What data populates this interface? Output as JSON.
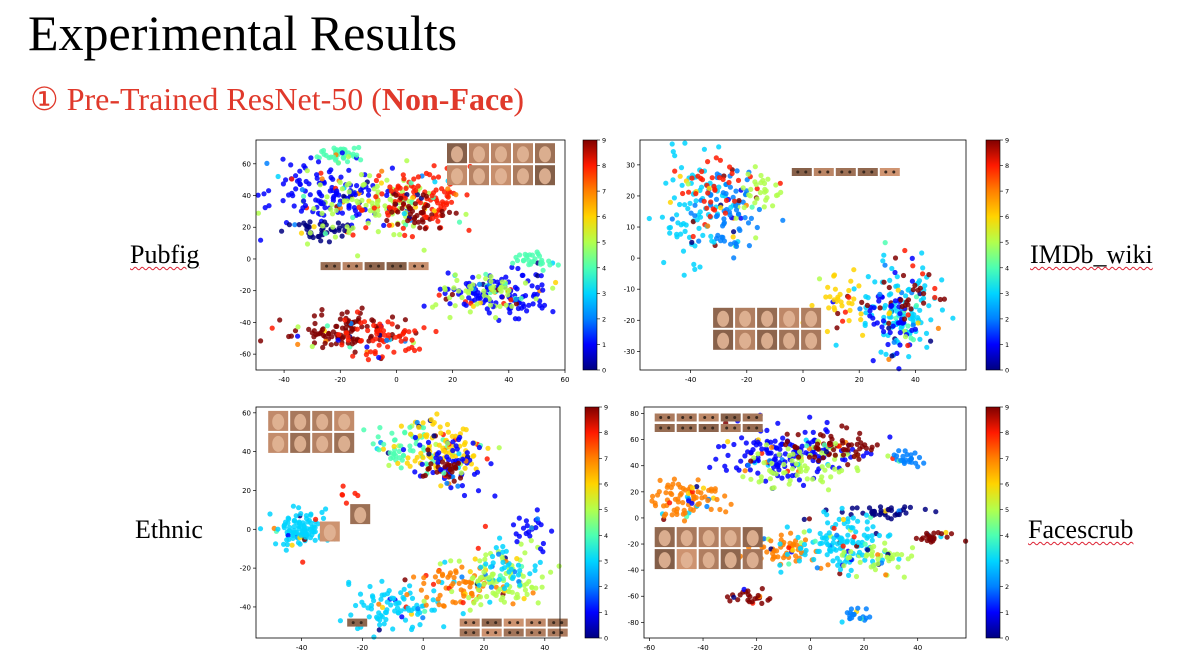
{
  "slide": {
    "title": "Experimental Results",
    "subtitle_prefix": "① Pre-Trained ResNet-50 (",
    "subtitle_bold": "Non-Face",
    "subtitle_suffix": ")"
  },
  "labels": {
    "pubfig": "Pubfig",
    "imdb": "IMDb_wiki",
    "ethnic": "Ethnic",
    "facescrub": "Facescrub"
  },
  "colors": {
    "title": "#000000",
    "subtitle": "#e0392b",
    "colormap": [
      "#000080",
      "#0000ff",
      "#0080ff",
      "#00d4ff",
      "#4dffb2",
      "#b2ff4d",
      "#ffd400",
      "#ff8000",
      "#ff1a00",
      "#800000"
    ]
  },
  "chart_data": [
    {
      "type": "scatter",
      "name": "Pubfig",
      "xlim": [
        -50,
        60
      ],
      "ylim": [
        -70,
        75
      ],
      "xticks": [
        -40,
        -20,
        0,
        20,
        40,
        60
      ],
      "yticks": [
        -60,
        -40,
        -20,
        0,
        20,
        40,
        60
      ],
      "colorbar": {
        "min": 0,
        "max": 9,
        "ticks": [
          0,
          1,
          2,
          3,
          4,
          5,
          6,
          7,
          8,
          9
        ]
      },
      "clusters": [
        {
          "x": -20,
          "y": 66,
          "sx": 4,
          "sy": 3,
          "n": 40,
          "class": 4
        },
        {
          "x": -25,
          "y": 40,
          "sx": 10,
          "sy": 9,
          "n": 140,
          "class": 1
        },
        {
          "x": -28,
          "y": 18,
          "sx": 6,
          "sy": 4,
          "n": 50,
          "class": 0
        },
        {
          "x": -8,
          "y": 32,
          "sx": 10,
          "sy": 10,
          "n": 100,
          "class": 5
        },
        {
          "x": 8,
          "y": 38,
          "sx": 9,
          "sy": 10,
          "n": 120,
          "class": 8
        },
        {
          "x": 6,
          "y": 30,
          "sx": 6,
          "sy": 6,
          "n": 40,
          "class": 9
        },
        {
          "x": -18,
          "y": -45,
          "sx": 9,
          "sy": 6,
          "n": 110,
          "class": 9
        },
        {
          "x": -5,
          "y": -50,
          "sx": 8,
          "sy": 6,
          "n": 70,
          "class": 8
        },
        {
          "x": 35,
          "y": -22,
          "sx": 10,
          "sy": 7,
          "n": 130,
          "class": 1
        },
        {
          "x": 30,
          "y": -20,
          "sx": 8,
          "sy": 6,
          "n": 60,
          "class": 5
        },
        {
          "x": 48,
          "y": 0,
          "sx": 4,
          "sy": 3,
          "n": 30,
          "class": 4
        }
      ],
      "image_rows": [
        {
          "x0": 18,
          "y0": 73,
          "cols": 5,
          "rows": 2,
          "kind": "face"
        },
        {
          "x0": -27,
          "y0": -2,
          "cols": 5,
          "rows": 1,
          "kind": "eyes"
        }
      ]
    },
    {
      "type": "scatter",
      "name": "IMDb_wiki",
      "xlim": [
        -58,
        58
      ],
      "ylim": [
        -36,
        38
      ],
      "xticks": [
        -40,
        -20,
        0,
        20,
        40
      ],
      "yticks": [
        -30,
        -20,
        -10,
        0,
        10,
        20,
        30
      ],
      "colorbar": {
        "min": 0,
        "max": 9,
        "ticks": [
          0,
          1,
          2,
          3,
          4,
          5,
          6,
          7,
          8,
          9
        ]
      },
      "clusters": [
        {
          "x": -38,
          "y": 15,
          "sx": 7,
          "sy": 8,
          "n": 90,
          "class": 3
        },
        {
          "x": -25,
          "y": 15,
          "sx": 6,
          "sy": 7,
          "n": 80,
          "class": 2
        },
        {
          "x": -32,
          "y": 22,
          "sx": 6,
          "sy": 5,
          "n": 40,
          "class": 8
        },
        {
          "x": -14,
          "y": 21,
          "sx": 4,
          "sy": 4,
          "n": 30,
          "class": 5
        },
        {
          "x": 12,
          "y": -15,
          "sx": 4,
          "sy": 5,
          "n": 40,
          "class": 6
        },
        {
          "x": 35,
          "y": -16,
          "sx": 7,
          "sy": 8,
          "n": 120,
          "class": 3
        },
        {
          "x": 33,
          "y": -20,
          "sx": 6,
          "sy": 7,
          "n": 60,
          "class": 1
        },
        {
          "x": 36,
          "y": -12,
          "sx": 6,
          "sy": 6,
          "n": 25,
          "class": 9
        }
      ],
      "image_rows": [
        {
          "x0": -4,
          "y0": 29,
          "cols": 5,
          "rows": 1,
          "kind": "eyes"
        },
        {
          "x0": -32,
          "y0": -16,
          "cols": 5,
          "rows": 2,
          "kind": "face"
        }
      ]
    },
    {
      "type": "scatter",
      "name": "Ethnic",
      "xlim": [
        -55,
        45
      ],
      "ylim": [
        -56,
        63
      ],
      "xticks": [
        -40,
        -20,
        0,
        20,
        40
      ],
      "yticks": [
        -40,
        -20,
        0,
        20,
        40,
        60
      ],
      "colorbar": {
        "min": 0,
        "max": 9,
        "ticks": [
          0,
          1,
          2,
          3,
          4,
          5,
          6,
          7,
          8,
          9
        ]
      },
      "clusters": [
        {
          "x": -40,
          "y": 0,
          "sx": 5,
          "sy": 5,
          "n": 110,
          "class": 3
        },
        {
          "x": -5,
          "y": 42,
          "sx": 6,
          "sy": 6,
          "n": 60,
          "class": 4
        },
        {
          "x": 5,
          "y": 42,
          "sx": 7,
          "sy": 7,
          "n": 90,
          "class": 6
        },
        {
          "x": 10,
          "y": 35,
          "sx": 6,
          "sy": 7,
          "n": 60,
          "class": 1
        },
        {
          "x": 8,
          "y": 30,
          "sx": 4,
          "sy": 3,
          "n": 30,
          "class": 9
        },
        {
          "x": -25,
          "y": 18,
          "sx": 2,
          "sy": 2,
          "n": 6,
          "class": 8
        },
        {
          "x": -10,
          "y": -40,
          "sx": 7,
          "sy": 6,
          "n": 90,
          "class": 3
        },
        {
          "x": 10,
          "y": -30,
          "sx": 8,
          "sy": 6,
          "n": 70,
          "class": 7
        },
        {
          "x": 25,
          "y": -25,
          "sx": 8,
          "sy": 7,
          "n": 100,
          "class": 5
        },
        {
          "x": 28,
          "y": -20,
          "sx": 6,
          "sy": 6,
          "n": 40,
          "class": 3
        },
        {
          "x": 35,
          "y": 0,
          "sx": 3,
          "sy": 5,
          "n": 25,
          "class": 1
        }
      ],
      "image_rows": [
        {
          "x0": -51,
          "y0": 61,
          "cols": 4,
          "rows": 2,
          "kind": "face"
        },
        {
          "x0": -24,
          "y0": 13,
          "cols": 1,
          "rows": 1,
          "kind": "face"
        },
        {
          "x0": -34,
          "y0": 4,
          "cols": 1,
          "rows": 1,
          "kind": "face"
        },
        {
          "x0": 12,
          "y0": -46,
          "cols": 5,
          "rows": 2,
          "kind": "eyes"
        },
        {
          "x0": -25,
          "y0": -46,
          "cols": 1,
          "rows": 1,
          "kind": "eyes"
        }
      ]
    },
    {
      "type": "scatter",
      "name": "Facescrub",
      "xlim": [
        -62,
        58
      ],
      "ylim": [
        -92,
        85
      ],
      "xticks": [
        -60,
        -40,
        -20,
        0,
        20,
        40
      ],
      "yticks": [
        -80,
        -60,
        -40,
        -20,
        0,
        20,
        40,
        60,
        80
      ],
      "colorbar": {
        "min": 0,
        "max": 9,
        "ticks": [
          0,
          1,
          2,
          3,
          4,
          5,
          6,
          7,
          8,
          9
        ]
      },
      "clusters": [
        {
          "x": -45,
          "y": 15,
          "sx": 7,
          "sy": 8,
          "n": 90,
          "class": 7
        },
        {
          "x": -10,
          "y": 50,
          "sx": 12,
          "sy": 10,
          "n": 160,
          "class": 1
        },
        {
          "x": -5,
          "y": 40,
          "sx": 10,
          "sy": 8,
          "n": 80,
          "class": 5
        },
        {
          "x": 10,
          "y": 55,
          "sx": 8,
          "sy": 6,
          "n": 60,
          "class": 9
        },
        {
          "x": 35,
          "y": 45,
          "sx": 3,
          "sy": 3,
          "n": 25,
          "class": 2
        },
        {
          "x": 27,
          "y": 5,
          "sx": 7,
          "sy": 3,
          "n": 40,
          "class": 0
        },
        {
          "x": 45,
          "y": -15,
          "sx": 3,
          "sy": 3,
          "n": 25,
          "class": 9
        },
        {
          "x": -10,
          "y": -25,
          "sx": 6,
          "sy": 6,
          "n": 60,
          "class": 7
        },
        {
          "x": 10,
          "y": -20,
          "sx": 10,
          "sy": 10,
          "n": 130,
          "class": 3
        },
        {
          "x": 25,
          "y": -30,
          "sx": 6,
          "sy": 6,
          "n": 50,
          "class": 5
        },
        {
          "x": -22,
          "y": -60,
          "sx": 4,
          "sy": 3,
          "n": 25,
          "class": 9
        },
        {
          "x": 18,
          "y": -75,
          "sx": 3,
          "sy": 3,
          "n": 20,
          "class": 2
        }
      ],
      "image_rows": [
        {
          "x0": -58,
          "y0": 80,
          "cols": 5,
          "rows": 1,
          "kind": "eyes"
        },
        {
          "x0": -58,
          "y0": 72,
          "cols": 5,
          "rows": 1,
          "kind": "eyes"
        },
        {
          "x0": -58,
          "y0": -7,
          "cols": 5,
          "rows": 2,
          "kind": "face"
        }
      ]
    }
  ]
}
